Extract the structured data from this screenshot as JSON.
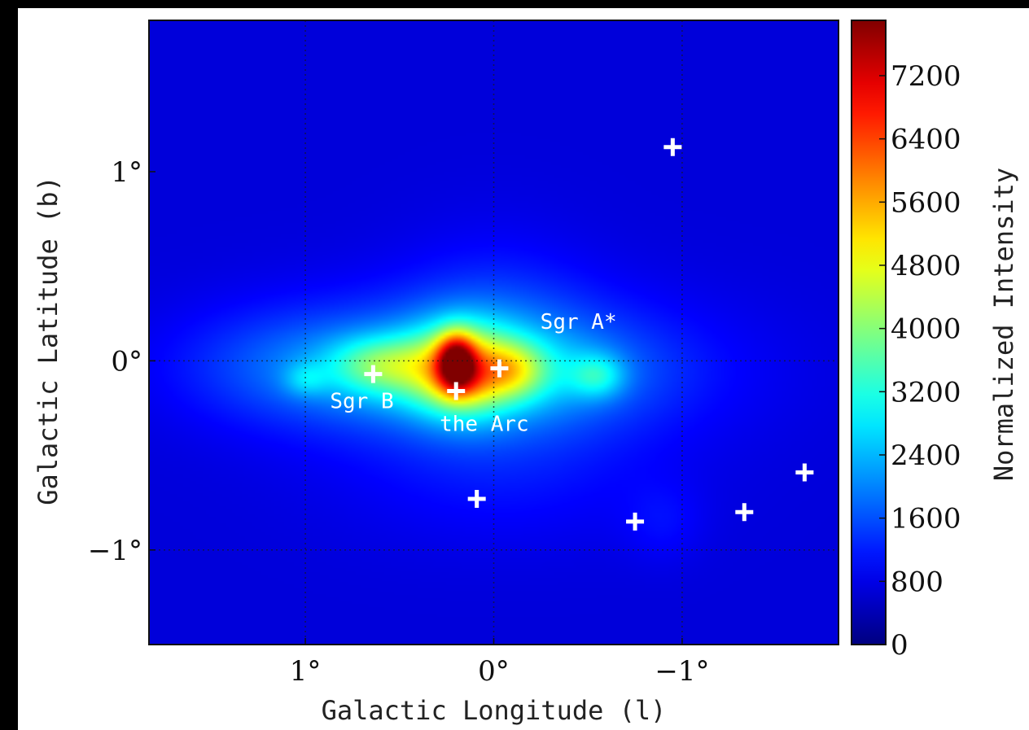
{
  "chart_data": {
    "type": "heatmap",
    "title": "",
    "xlabel": "Galactic Longitude (l)",
    "ylabel": "Galactic Latitude (b)",
    "colorbar_label": "Normalized Intensity",
    "colormap": "jet",
    "x_reversed": true,
    "xlim": [
      1.83,
      -1.83
    ],
    "ylim": [
      -1.5,
      1.8
    ],
    "x_ticks": [
      {
        "value": 1,
        "label": "1°"
      },
      {
        "value": 0,
        "label": "0°"
      },
      {
        "value": -1,
        "label": "−1°"
      }
    ],
    "y_ticks": [
      {
        "value": 1,
        "label": "1°"
      },
      {
        "value": 0,
        "label": "0°"
      },
      {
        "value": -1,
        "label": "−1°"
      }
    ],
    "colorbar_range": [
      0,
      7900
    ],
    "colorbar_ticks": [
      0,
      800,
      1600,
      2400,
      3200,
      4000,
      4800,
      5600,
      6400,
      7200
    ],
    "gridlines": [
      {
        "axis": "x",
        "value": 0
      },
      {
        "axis": "x",
        "value": 1
      },
      {
        "axis": "x",
        "value": -1
      },
      {
        "axis": "y",
        "value": 0
      },
      {
        "axis": "y",
        "value": -1
      }
    ],
    "background_value": 700,
    "blobs": [
      {
        "l": 0.03,
        "b": -0.05,
        "sl": 0.75,
        "sb": 0.28,
        "amp": 1300
      },
      {
        "l": 0.0,
        "b": 0.15,
        "sl": 0.35,
        "sb": 0.35,
        "amp": 500
      },
      {
        "l": -0.05,
        "b": -0.65,
        "sl": 0.6,
        "sb": 0.25,
        "amp": 300
      },
      {
        "l": 1.1,
        "b": -0.02,
        "sl": 0.45,
        "sb": 0.22,
        "amp": 600
      },
      {
        "l": 1.0,
        "b": -0.1,
        "sl": 0.08,
        "sb": 0.06,
        "amp": 700
      },
      {
        "l": -0.9,
        "b": -0.85,
        "sl": 0.15,
        "sb": 0.15,
        "amp": 300
      },
      {
        "l": 0.2,
        "b": -0.05,
        "sl": 0.5,
        "sb": 0.15,
        "amp": 1200
      },
      {
        "l": 0.6,
        "b": -0.02,
        "sl": 0.18,
        "sb": 0.1,
        "amp": 1300
      },
      {
        "l": -0.55,
        "b": -0.08,
        "sl": 0.1,
        "sb": 0.08,
        "amp": 1200
      },
      {
        "l": 0.17,
        "b": -0.05,
        "sl": 0.18,
        "sb": 0.17,
        "amp": 2300
      },
      {
        "l": 0.2,
        "b": 0.0,
        "sl": 0.07,
        "sb": 0.1,
        "amp": 3500
      },
      {
        "l": 0.17,
        "b": -0.12,
        "sl": 0.1,
        "sb": 0.08,
        "amp": 600
      },
      {
        "l": -0.1,
        "b": -0.05,
        "sl": 0.12,
        "sb": 0.1,
        "amp": 1400
      }
    ],
    "markers": [
      {
        "l": 0.64,
        "b": -0.07
      },
      {
        "l": 0.2,
        "b": -0.16
      },
      {
        "l": -0.03,
        "b": -0.04
      },
      {
        "l": -0.95,
        "b": 1.13
      },
      {
        "l": 0.09,
        "b": -0.73
      },
      {
        "l": -0.75,
        "b": -0.85
      },
      {
        "l": -1.33,
        "b": -0.8
      },
      {
        "l": -1.65,
        "b": -0.59
      }
    ],
    "annotations": [
      {
        "text": "Sgr A*",
        "l": -0.45,
        "b": 0.17
      },
      {
        "text": "Sgr B",
        "l": 0.7,
        "b": -0.25
      },
      {
        "text": "the Arc",
        "l": 0.05,
        "b": -0.37
      }
    ]
  }
}
